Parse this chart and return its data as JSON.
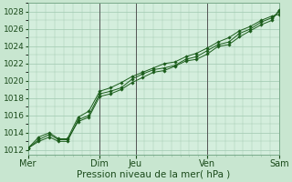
{
  "background_color": "#c8e6d0",
  "plot_bg_color": "#d4eedd",
  "grid_color": "#a0c8b0",
  "line_color": "#1a5c1a",
  "marker_color": "#1a5c1a",
  "xlabel": "Pression niveau de la mer( hPa )",
  "ylim": [
    1011.5,
    1029.0
  ],
  "yticks": [
    1012,
    1014,
    1016,
    1018,
    1020,
    1022,
    1024,
    1026,
    1028
  ],
  "xtick_labels": [
    "Mer",
    "Dim",
    "Jeu",
    "Ven",
    "Sam"
  ],
  "xtick_positions": [
    0,
    2,
    3,
    5,
    7
  ],
  "xlabel_fontsize": 7.5,
  "ytick_fontsize": 6.5,
  "xtick_fontsize": 7,
  "series1_x": [
    0,
    0.3,
    0.6,
    0.85,
    1.1,
    1.4,
    1.7,
    2.0,
    2.3,
    2.6,
    2.9,
    3.2,
    3.5,
    3.8,
    4.1,
    4.4,
    4.7,
    5.0,
    5.3,
    5.6,
    5.9,
    6.2,
    6.5,
    6.8,
    7.0
  ],
  "series1_y": [
    1012.2,
    1013.0,
    1013.5,
    1013.0,
    1013.0,
    1015.5,
    1016.0,
    1018.5,
    1018.8,
    1019.2,
    1020.2,
    1020.8,
    1021.3,
    1021.5,
    1021.8,
    1022.5,
    1022.8,
    1023.5,
    1024.2,
    1024.5,
    1025.5,
    1026.0,
    1026.8,
    1027.3,
    1028.0
  ],
  "series2_x": [
    0,
    0.3,
    0.6,
    0.85,
    1.1,
    1.4,
    1.7,
    2.0,
    2.3,
    2.6,
    2.9,
    3.2,
    3.5,
    3.8,
    4.1,
    4.4,
    4.7,
    5.0,
    5.3,
    5.6,
    5.9,
    6.2,
    6.5,
    6.8,
    7.0
  ],
  "series2_y": [
    1012.2,
    1013.2,
    1013.8,
    1013.2,
    1013.2,
    1015.3,
    1015.8,
    1018.2,
    1018.5,
    1019.0,
    1019.8,
    1020.4,
    1021.0,
    1021.2,
    1021.7,
    1022.3,
    1022.5,
    1023.1,
    1024.0,
    1024.2,
    1025.1,
    1025.8,
    1026.5,
    1027.0,
    1028.2
  ],
  "series3_x": [
    0,
    0.3,
    0.6,
    0.85,
    1.1,
    1.4,
    1.7,
    2.0,
    2.3,
    2.6,
    2.9,
    3.2,
    3.5,
    3.8,
    4.1,
    4.4,
    4.7,
    5.0,
    5.3,
    5.6,
    5.9,
    6.2,
    6.5,
    6.8,
    7.0
  ],
  "series3_y": [
    1012.2,
    1013.5,
    1014.0,
    1013.3,
    1013.3,
    1015.8,
    1016.5,
    1018.8,
    1019.2,
    1019.8,
    1020.5,
    1021.0,
    1021.5,
    1022.0,
    1022.2,
    1022.8,
    1023.2,
    1023.8,
    1024.5,
    1025.0,
    1025.8,
    1026.3,
    1027.0,
    1027.5,
    1027.7
  ],
  "vline_x": [
    0,
    2,
    3,
    5,
    7
  ],
  "vline_dark": [
    2,
    3,
    5,
    7
  ]
}
